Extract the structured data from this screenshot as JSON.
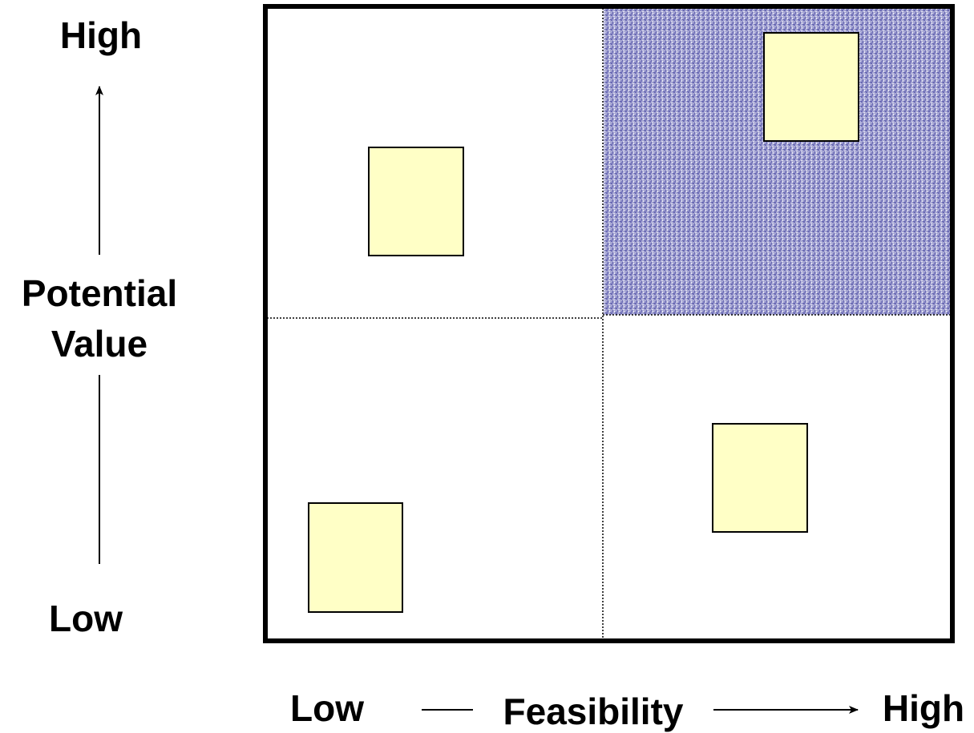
{
  "y_axis": {
    "high_label": "High",
    "title_line1": "Potential",
    "title_line2": "Value",
    "low_label": "Low"
  },
  "x_axis": {
    "low_label": "Low",
    "title": "Feasibility",
    "high_label": "High"
  },
  "colors": {
    "highlight_quadrant": "#9d9dcc",
    "item_fill": "#ffffc6",
    "frame": "#000000"
  },
  "quadrants": [
    {
      "name": "low-feasibility-high-value",
      "highlighted": false
    },
    {
      "name": "high-feasibility-high-value",
      "highlighted": true
    },
    {
      "name": "low-feasibility-low-value",
      "highlighted": false
    },
    {
      "name": "high-feasibility-low-value",
      "highlighted": false
    }
  ]
}
